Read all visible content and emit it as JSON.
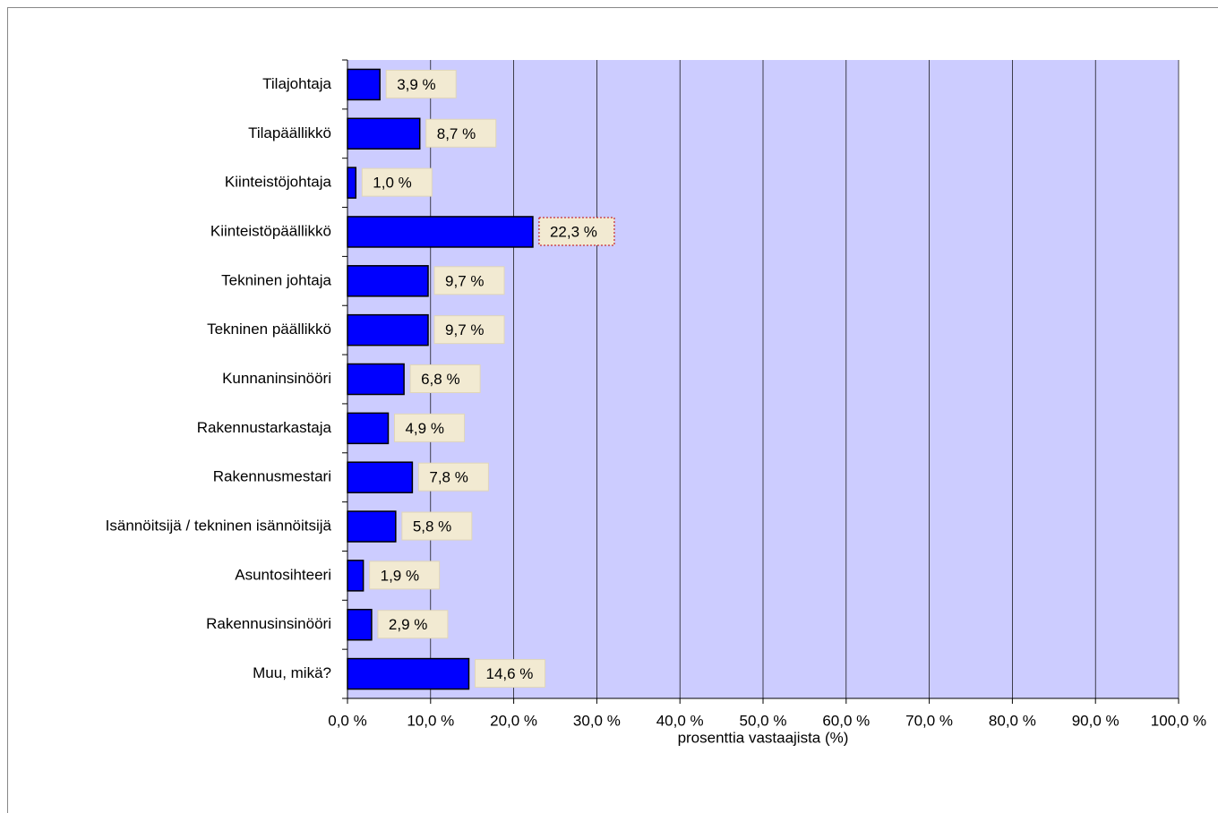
{
  "chart_data": {
    "type": "bar",
    "orientation": "horizontal",
    "categories": [
      "Tilajohtaja",
      "Tilapäällikkö",
      "Kiinteistöjohtaja",
      "Kiinteistöpäällikkö",
      "Tekninen johtaja",
      "Tekninen päällikkö",
      "Kunnaninsinööri",
      "Rakennustarkastaja",
      "Rakennusmestari",
      "Isännöitsijä / tekninen isännöitsijä",
      "Asuntosihteeri",
      "Rakennusinsinööri",
      "Muu, mikä?"
    ],
    "values": [
      3.9,
      8.7,
      1.0,
      22.3,
      9.7,
      9.7,
      6.8,
      4.9,
      7.8,
      5.8,
      1.9,
      2.9,
      14.6
    ],
    "value_labels": [
      "3,9 %",
      "8,7 %",
      "1,0 %",
      "22,3 %",
      "9,7 %",
      "9,7 %",
      "6,8 %",
      "4,9 %",
      "7,8 %",
      "5,8 %",
      "1,9 %",
      "2,9 %",
      "14,6 %"
    ],
    "color": "#0000ff",
    "xlabel": "prosenttia vastaajista (%)",
    "xlim": [
      0,
      100
    ],
    "xticks": [
      {
        "value": 0,
        "label": "0,0 %"
      },
      {
        "value": 10,
        "label": "10,0 %"
      },
      {
        "value": 20,
        "label": "20,0 %"
      },
      {
        "value": 30,
        "label": "30,0 %"
      },
      {
        "value": 40,
        "label": "40,0 %"
      },
      {
        "value": 50,
        "label": "50,0 %"
      },
      {
        "value": 60,
        "label": "60,0 %"
      },
      {
        "value": 70,
        "label": "70,0 %"
      },
      {
        "value": 80,
        "label": "80,0 %"
      },
      {
        "value": 90,
        "label": "90,0 %"
      },
      {
        "value": 100,
        "label": "100,0 %"
      }
    ],
    "grid": true
  }
}
